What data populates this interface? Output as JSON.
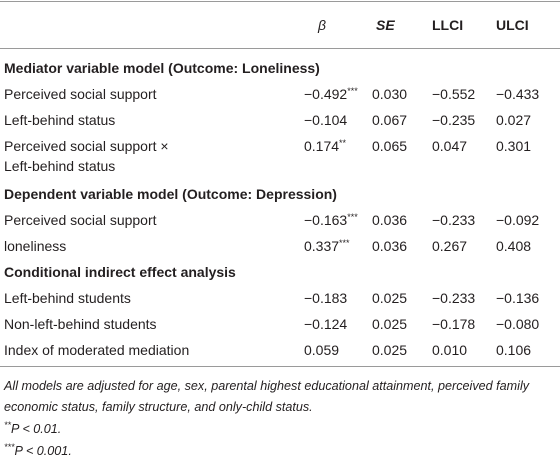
{
  "header": {
    "columns": [
      "β",
      "SE",
      "LLCI",
      "ULCI"
    ]
  },
  "sections": [
    {
      "title": "Mediator variable model (Outcome: Loneliness)",
      "rows": [
        {
          "label": [
            "Perceived social support"
          ],
          "cells": [
            {
              "text": "−0.492",
              "sup": "***"
            },
            {
              "text": "0.030"
            },
            {
              "text": "−0.552"
            },
            {
              "text": "−0.433"
            }
          ]
        },
        {
          "label": [
            "Left-behind status"
          ],
          "cells": [
            {
              "text": "−0.104"
            },
            {
              "text": "0.067"
            },
            {
              "text": "−0.235"
            },
            {
              "text": "0.027"
            }
          ]
        },
        {
          "label": [
            "Perceived social support ×",
            "Left-behind status"
          ],
          "cells": [
            {
              "text": "0.174",
              "sup": "**"
            },
            {
              "text": "0.065"
            },
            {
              "text": "0.047"
            },
            {
              "text": "0.301"
            }
          ]
        }
      ]
    },
    {
      "title": "Dependent variable model (Outcome: Depression)",
      "rows": [
        {
          "label": [
            "Perceived social support"
          ],
          "cells": [
            {
              "text": "−0.163",
              "sup": "***"
            },
            {
              "text": "0.036"
            },
            {
              "text": "−0.233"
            },
            {
              "text": "−0.092"
            }
          ]
        },
        {
          "label": [
            "loneliness"
          ],
          "cells": [
            {
              "text": "0.337",
              "sup": "***"
            },
            {
              "text": "0.036"
            },
            {
              "text": "0.267"
            },
            {
              "text": "0.408"
            }
          ]
        }
      ]
    },
    {
      "title": "Conditional indirect effect analysis",
      "rows": [
        {
          "label": [
            "Left-behind students"
          ],
          "cells": [
            {
              "text": "−0.183"
            },
            {
              "text": "0.025"
            },
            {
              "text": "−0.233"
            },
            {
              "text": "−0.136"
            }
          ]
        },
        {
          "label": [
            "Non-left-behind students"
          ],
          "cells": [
            {
              "text": "−0.124"
            },
            {
              "text": "0.025"
            },
            {
              "text": "−0.178"
            },
            {
              "text": "−0.080"
            }
          ]
        },
        {
          "label": [
            "Index of moderated mediation"
          ],
          "cells": [
            {
              "text": "0.059"
            },
            {
              "text": "0.025"
            },
            {
              "text": "0.010"
            },
            {
              "text": "0.106"
            }
          ]
        }
      ]
    }
  ],
  "notes": [
    {
      "text": "All models are adjusted for age, sex, parental highest educational attainment, perceived family economic status, family structure, and only-child status."
    },
    {
      "sup": "**",
      "text": "P < 0.01."
    },
    {
      "sup": "***",
      "text": "P < 0.001."
    }
  ]
}
